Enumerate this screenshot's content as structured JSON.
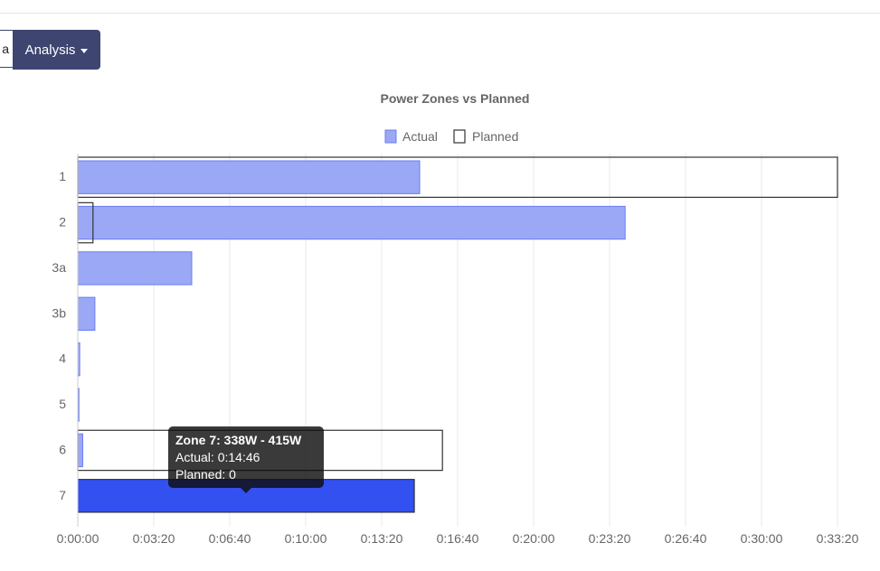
{
  "toolbar": {
    "prev_button_label": "a",
    "analysis_button_label": "Analysis"
  },
  "tooltip": {
    "title": "Zone 7: 338W - 415W",
    "actual_line": "Actual: 0:14:46",
    "planned_line": "Planned: 0"
  },
  "chart_data": {
    "type": "bar",
    "orientation": "horizontal",
    "title": "Power Zones vs Planned",
    "categories": [
      "1",
      "2",
      "3a",
      "3b",
      "4",
      "5",
      "6",
      "7"
    ],
    "series": [
      {
        "name": "Actual",
        "values": [
          900,
          1441,
          300,
          45,
          5,
          3,
          13,
          886
        ],
        "color": "#9ba8f5",
        "border": "#6b7df0"
      },
      {
        "name": "Planned",
        "values": [
          2000,
          40,
          0,
          0,
          0,
          0,
          960,
          0
        ],
        "color": "transparent",
        "border": "#333333"
      }
    ],
    "highlight": {
      "category": "7",
      "color": "#3350f0"
    },
    "x_unit": "seconds",
    "xlim": [
      0,
      2000
    ],
    "x_ticks": [
      0,
      200,
      400,
      600,
      800,
      1000,
      1200,
      1400,
      1600,
      1800,
      2000
    ],
    "x_tick_labels": [
      "0:00:00",
      "0:03:20",
      "0:06:40",
      "0:10:00",
      "0:13:20",
      "0:16:40",
      "0:20:00",
      "0:23:20",
      "0:26:40",
      "0:30:00",
      "0:33:20"
    ],
    "legend_position": "top",
    "grid": true
  }
}
